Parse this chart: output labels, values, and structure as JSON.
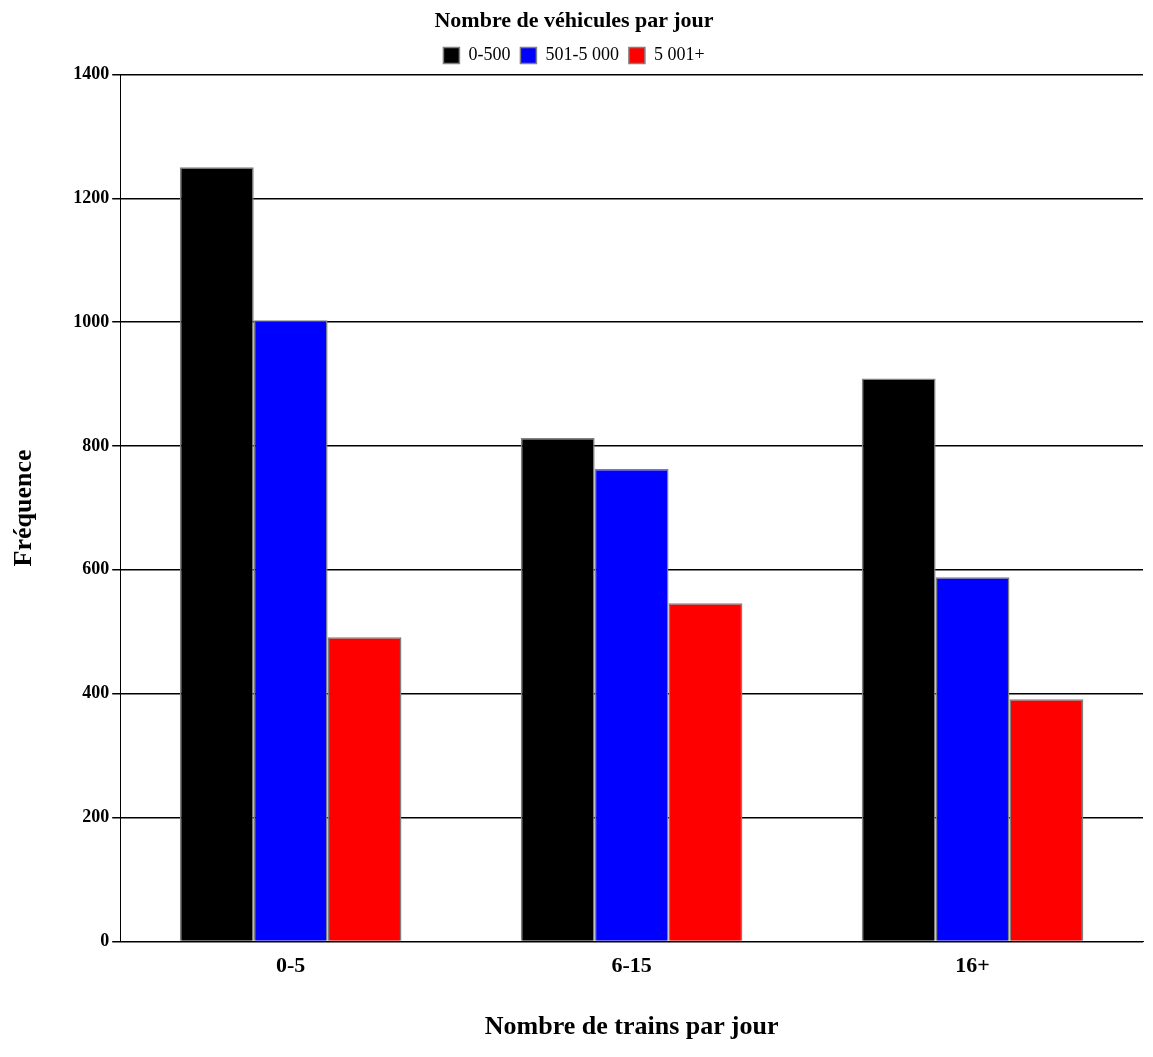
{
  "chart_data": {
    "type": "bar",
    "xlabel": "Nombre de trains par jour",
    "ylabel": "Fréquence",
    "legend_title": "Nombre de véhicules par jour",
    "categories": [
      "0-5",
      "6-15",
      "16+"
    ],
    "series": [
      {
        "name": "0-500",
        "color": "#000000",
        "values": [
          1250,
          813,
          909
        ]
      },
      {
        "name": "501-5 000",
        "color": "#0000ff",
        "values": [
          1003,
          763,
          588
        ]
      },
      {
        "name": "5 001+",
        "color": "#ff0000",
        "values": [
          491,
          546,
          391
        ]
      }
    ],
    "ylim": [
      0,
      1400
    ],
    "yticks": [
      0,
      200,
      400,
      600,
      800,
      1000,
      1200,
      1400
    ],
    "grid": "y",
    "legend": "top"
  }
}
